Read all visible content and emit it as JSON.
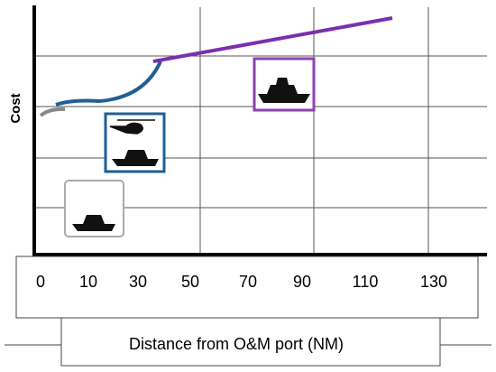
{
  "axis": {
    "y_label": "Cost",
    "x_ticks": [
      "0",
      "10",
      "30",
      "50",
      "70",
      "90",
      "110",
      "130"
    ],
    "x_label": "Distance from O&M port (NM)"
  }
}
